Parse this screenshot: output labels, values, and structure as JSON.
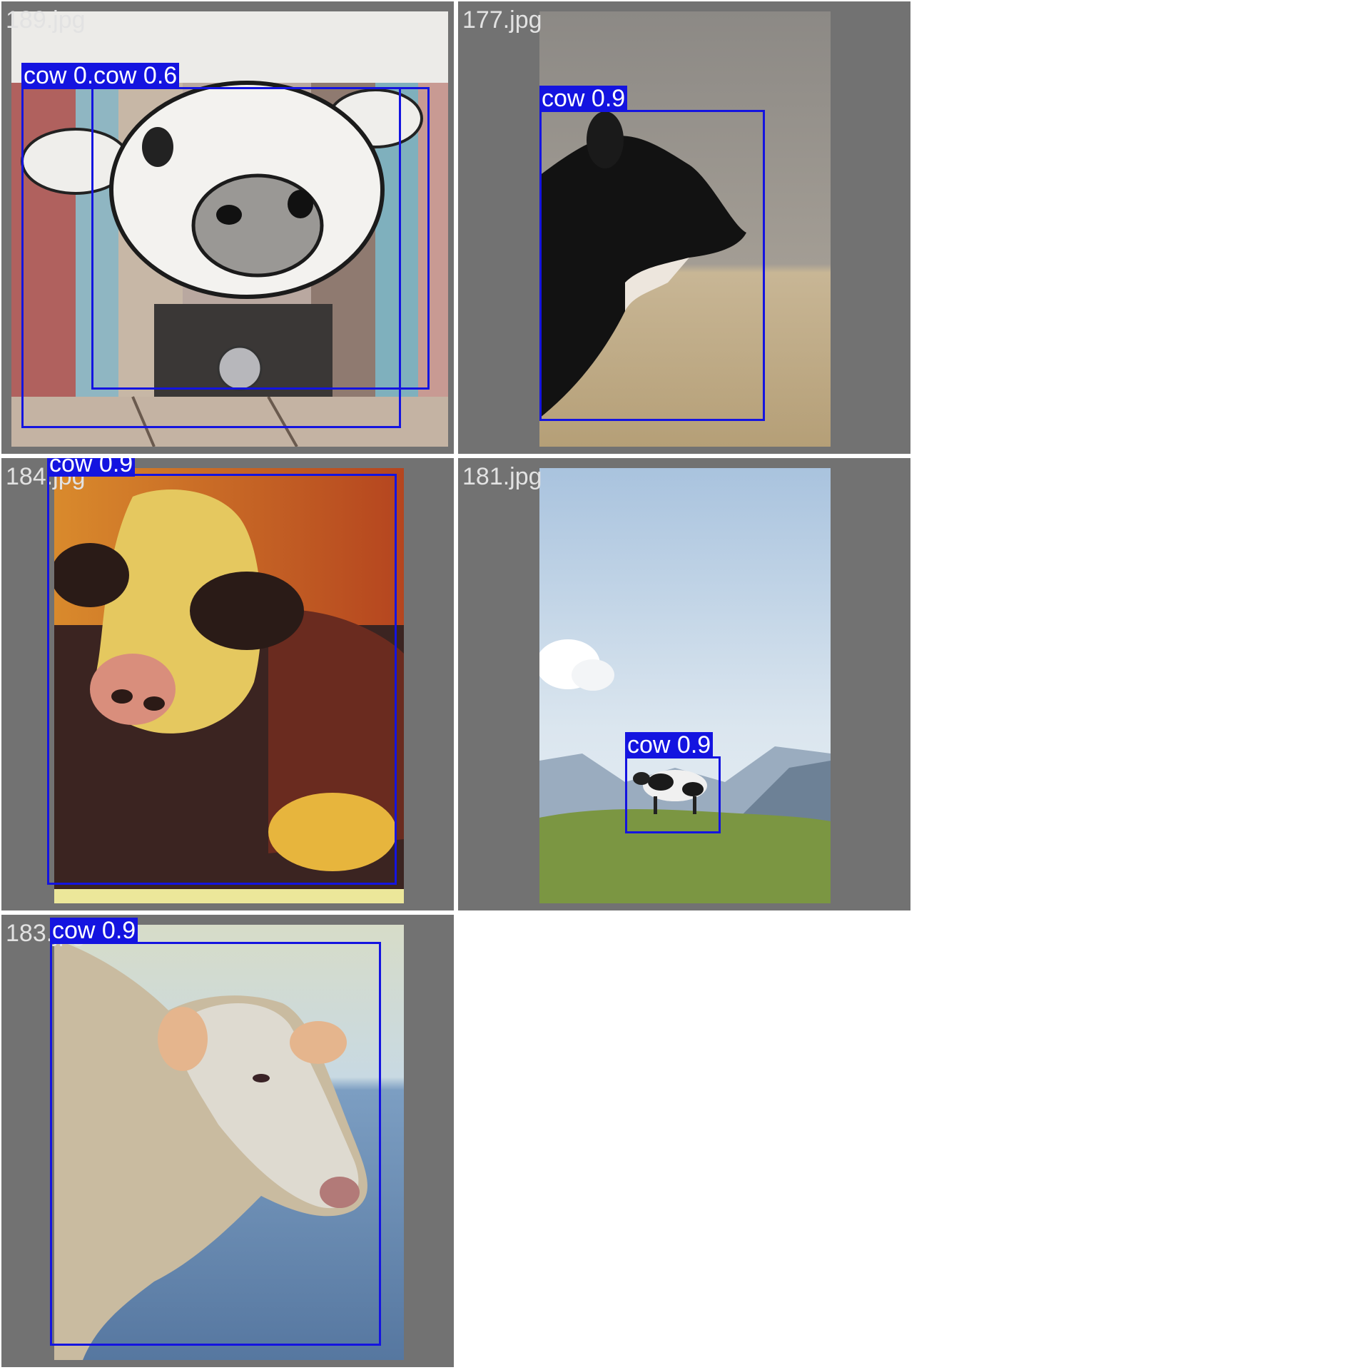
{
  "tiles": [
    {
      "filename": "189.jpg",
      "detections": [
        {
          "label": "cow 0.3"
        },
        {
          "label": "cow 0.6"
        }
      ]
    },
    {
      "filename": "177.jpg",
      "detections": [
        {
          "label": "cow 0.9"
        }
      ]
    },
    {
      "filename": "184.jpg",
      "detections": [
        {
          "label": "cow 0.9"
        }
      ]
    },
    {
      "filename": "181.jpg",
      "detections": [
        {
          "label": "cow 0.9"
        }
      ]
    },
    {
      "filename": "183.jpg",
      "detections": [
        {
          "label": "cow 0.9"
        }
      ]
    }
  ],
  "colors": {
    "box": "#1414e0",
    "background": "#727272",
    "filename_text": "#e2e2e2"
  }
}
